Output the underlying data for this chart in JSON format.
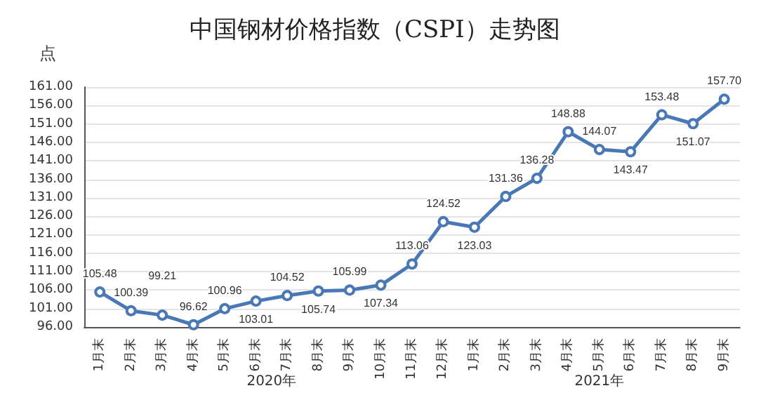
{
  "chart_data": {
    "type": "line",
    "title": "中国钢材价格指数（CSPI）走势图",
    "ylabel": "点",
    "categories": [
      "1月末",
      "2月末",
      "3月末",
      "4月末",
      "5月末",
      "6月末",
      "7月末",
      "8月末",
      "9月末",
      "10月末",
      "11月末",
      "12月末",
      "1月末",
      "2月末",
      "3月末",
      "4月末",
      "5月末",
      "6月末",
      "7月末",
      "8月末",
      "9月末"
    ],
    "series": [
      {
        "color": "#4a78b5",
        "values": [
          105.48,
          100.39,
          99.21,
          96.62,
          100.96,
          103.01,
          104.52,
          105.74,
          105.99,
          107.34,
          113.06,
          124.52,
          123.03,
          131.36,
          136.28,
          148.88,
          144.07,
          143.47,
          153.48,
          151.07,
          157.7
        ],
        "value_labels": [
          "105.48",
          "100.39",
          "99.21",
          "96.62",
          "100.96",
          "103.01",
          "104.52",
          "105.74",
          "105.99",
          "107.34",
          "113.06",
          "124.52",
          "123.03",
          "131.36",
          "136.28",
          "148.88",
          "144.07",
          "143.47",
          "153.48",
          "151.07",
          "157.70"
        ]
      }
    ],
    "ylim": [
      96,
      161
    ],
    "yticks": [
      {
        "value": 96,
        "label": "96.00"
      },
      {
        "value": 101,
        "label": "101.00"
      },
      {
        "value": 106,
        "label": "106.00"
      },
      {
        "value": 111,
        "label": "111.00"
      },
      {
        "value": 116,
        "label": "116.00"
      },
      {
        "value": 121,
        "label": "121.00"
      },
      {
        "value": 126,
        "label": "126.00"
      },
      {
        "value": 131,
        "label": "131.00"
      },
      {
        "value": 136,
        "label": "136.00"
      },
      {
        "value": 141,
        "label": "141.00"
      },
      {
        "value": 146,
        "label": "146.00"
      },
      {
        "value": 151,
        "label": "151.00"
      },
      {
        "value": 156,
        "label": "156.00"
      },
      {
        "value": 161,
        "label": "161.00"
      }
    ],
    "annotations": [
      "2020年",
      "2021年"
    ],
    "grid": "y",
    "marker": "circle",
    "line_style": "solid"
  }
}
